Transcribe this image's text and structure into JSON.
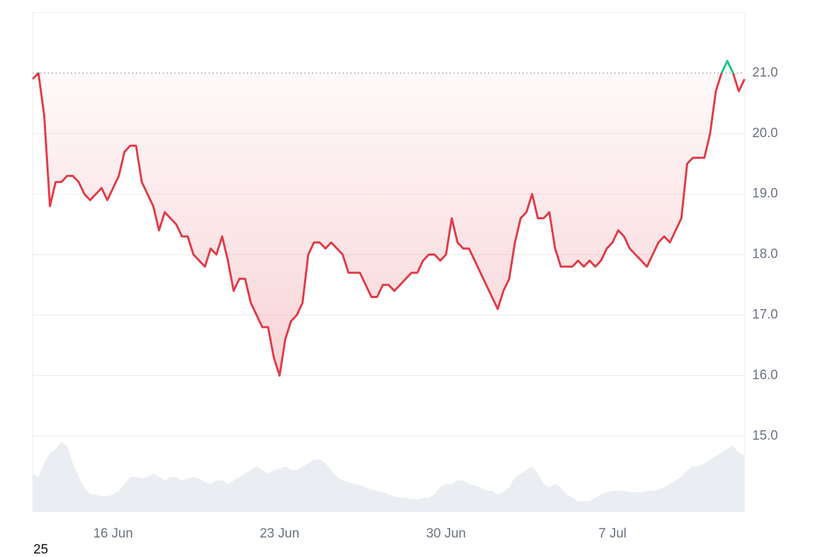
{
  "chart_data": {
    "type": "line",
    "categories": [
      null,
      null,
      null,
      null,
      null,
      null,
      null,
      null,
      null,
      null,
      null,
      null,
      null,
      null,
      "16 Jun",
      null,
      null,
      null,
      null,
      null,
      null,
      null,
      null,
      null,
      null,
      null,
      null,
      null,
      null,
      null,
      null,
      null,
      null,
      null,
      null,
      null,
      null,
      null,
      null,
      null,
      null,
      null,
      null,
      "23 Jun",
      null,
      null,
      null,
      null,
      null,
      null,
      null,
      null,
      null,
      null,
      null,
      null,
      null,
      null,
      null,
      null,
      null,
      null,
      null,
      null,
      null,
      null,
      null,
      null,
      null,
      null,
      null,
      null,
      "30 Jun",
      null,
      null,
      null,
      null,
      null,
      null,
      null,
      null,
      null,
      null,
      null,
      null,
      null,
      null,
      null,
      null,
      null,
      null,
      null,
      null,
      null,
      null,
      null,
      null,
      null,
      null,
      null,
      null,
      "7 Jul",
      null,
      null,
      null,
      null,
      null,
      null,
      null,
      null,
      null,
      null,
      null,
      null,
      null,
      null,
      null,
      null,
      null,
      null,
      null,
      null,
      null,
      null,
      null
    ],
    "values": [
      20.9,
      21.0,
      20.3,
      18.8,
      19.2,
      19.2,
      19.3,
      19.3,
      19.2,
      19.0,
      18.9,
      19.0,
      19.1,
      18.9,
      19.1,
      19.3,
      19.7,
      19.8,
      19.8,
      19.2,
      19.0,
      18.8,
      18.4,
      18.7,
      18.6,
      18.5,
      18.3,
      18.3,
      18.0,
      17.9,
      17.8,
      18.1,
      18.0,
      18.3,
      17.9,
      17.4,
      17.6,
      17.6,
      17.2,
      17.0,
      16.8,
      16.8,
      16.3,
      16.0,
      16.6,
      16.9,
      17.0,
      17.2,
      18.0,
      18.2,
      18.2,
      18.1,
      18.2,
      18.1,
      18.0,
      17.7,
      17.7,
      17.7,
      17.5,
      17.3,
      17.3,
      17.5,
      17.5,
      17.4,
      17.5,
      17.6,
      17.7,
      17.7,
      17.9,
      18.0,
      18.0,
      17.9,
      18.0,
      18.6,
      18.2,
      18.1,
      18.1,
      17.9,
      17.7,
      17.5,
      17.3,
      17.1,
      17.4,
      17.6,
      18.2,
      18.6,
      18.7,
      19.0,
      18.6,
      18.6,
      18.7,
      18.1,
      17.8,
      17.8,
      17.8,
      17.9,
      17.8,
      17.9,
      17.8,
      17.9,
      18.1,
      18.2,
      18.4,
      18.3,
      18.1,
      18.0,
      17.9,
      17.8,
      18.0,
      18.2,
      18.3,
      18.2,
      18.4,
      18.6,
      19.5,
      19.6,
      19.6,
      19.6,
      20.0,
      20.7,
      21.0,
      21.2,
      21.0,
      20.7,
      20.9
    ],
    "color": "#e23b47",
    "above_color": "#16c784",
    "baseline": 21.0,
    "ylim": [
      13.75,
      22.0
    ],
    "yticks": [
      {
        "value": 15,
        "label": "15.0"
      },
      {
        "value": 16,
        "label": "16.0"
      },
      {
        "value": 17,
        "label": "17.0"
      },
      {
        "value": 18,
        "label": "18.0"
      },
      {
        "value": 19,
        "label": "19.0"
      },
      {
        "value": 20,
        "label": "20.0"
      },
      {
        "value": 21,
        "label": "21.0"
      }
    ],
    "grid": true,
    "volume": {
      "color": "#eaeef3",
      "values": [
        55,
        50,
        70,
        85,
        90,
        100,
        95,
        70,
        50,
        35,
        25,
        25,
        22,
        22,
        25,
        30,
        40,
        50,
        50,
        48,
        50,
        55,
        50,
        45,
        50,
        50,
        45,
        48,
        50,
        48,
        42,
        40,
        45,
        45,
        40,
        45,
        50,
        55,
        60,
        65,
        60,
        55,
        60,
        62,
        65,
        60,
        60,
        65,
        70,
        75,
        75,
        70,
        60,
        50,
        45,
        42,
        40,
        38,
        35,
        32,
        30,
        28,
        25,
        22,
        20,
        20,
        18,
        18,
        20,
        20,
        25,
        35,
        40,
        40,
        45,
        45,
        40,
        38,
        35,
        30,
        30,
        25,
        28,
        35,
        50,
        55,
        60,
        65,
        55,
        40,
        35,
        40,
        35,
        25,
        20,
        15,
        15,
        15,
        20,
        25,
        28,
        30,
        30,
        30,
        28,
        28,
        28,
        30,
        30,
        32,
        35,
        40,
        45,
        50,
        60,
        65,
        65,
        70,
        75,
        80,
        85,
        90,
        95,
        85,
        80
      ]
    },
    "corner_label": "25"
  }
}
